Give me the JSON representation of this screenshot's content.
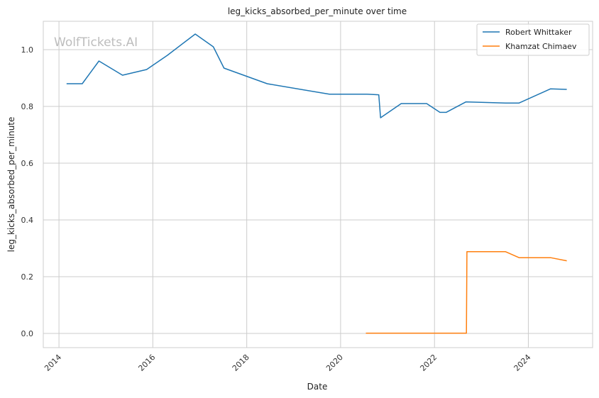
{
  "chart_data": {
    "type": "line",
    "title": "leg_kicks_absorbed_per_minute over time",
    "xlabel": "Date",
    "ylabel": "leg_kicks_absorbed_per_minute",
    "xlim": [
      "2013-09-01",
      "2025-05-15"
    ],
    "ylim": [
      -0.05,
      1.1
    ],
    "x_ticks": [
      "2014",
      "2016",
      "2018",
      "2020",
      "2022",
      "2024"
    ],
    "y_ticks": [
      "0.0",
      "0.2",
      "0.4",
      "0.6",
      "0.8",
      "1.0"
    ],
    "grid": true,
    "legend_position": "top-right",
    "watermark": "WolfTickets.AI",
    "series": [
      {
        "name": "Robert Whittaker",
        "color": "#1f77b4",
        "points": [
          {
            "x": "2014-03-01",
            "y": 0.88
          },
          {
            "x": "2014-07-01",
            "y": 0.88
          },
          {
            "x": "2014-11-08",
            "y": 0.96
          },
          {
            "x": "2015-05-10",
            "y": 0.91
          },
          {
            "x": "2015-11-14",
            "y": 0.93
          },
          {
            "x": "2016-04-23",
            "y": 0.98
          },
          {
            "x": "2016-11-26",
            "y": 1.055
          },
          {
            "x": "2017-04-16",
            "y": 1.01
          },
          {
            "x": "2017-07-08",
            "y": 0.935
          },
          {
            "x": "2018-06-09",
            "y": 0.88
          },
          {
            "x": "2019-10-06",
            "y": 0.843
          },
          {
            "x": "2020-07-26",
            "y": 0.843
          },
          {
            "x": "2020-10-24",
            "y": 0.841
          },
          {
            "x": "2020-11-07",
            "y": 0.76
          },
          {
            "x": "2021-04-17",
            "y": 0.81
          },
          {
            "x": "2021-11-01",
            "y": 0.81
          },
          {
            "x": "2022-02-12",
            "y": 0.779
          },
          {
            "x": "2022-04-01",
            "y": 0.779
          },
          {
            "x": "2022-09-03",
            "y": 0.816
          },
          {
            "x": "2023-07-08",
            "y": 0.812
          },
          {
            "x": "2023-10-21",
            "y": 0.812
          },
          {
            "x": "2024-06-22",
            "y": 0.862
          },
          {
            "x": "2024-10-26",
            "y": 0.86
          }
        ]
      },
      {
        "name": "Khamzat Chimaev",
        "color": "#ff7f0e",
        "points": [
          {
            "x": "2020-07-16",
            "y": 0.001
          },
          {
            "x": "2022-09-06",
            "y": 0.001
          },
          {
            "x": "2022-09-10",
            "y": 0.288
          },
          {
            "x": "2023-07-08",
            "y": 0.288
          },
          {
            "x": "2023-10-21",
            "y": 0.267
          },
          {
            "x": "2024-06-22",
            "y": 0.267
          },
          {
            "x": "2024-10-26",
            "y": 0.256
          }
        ]
      }
    ]
  }
}
